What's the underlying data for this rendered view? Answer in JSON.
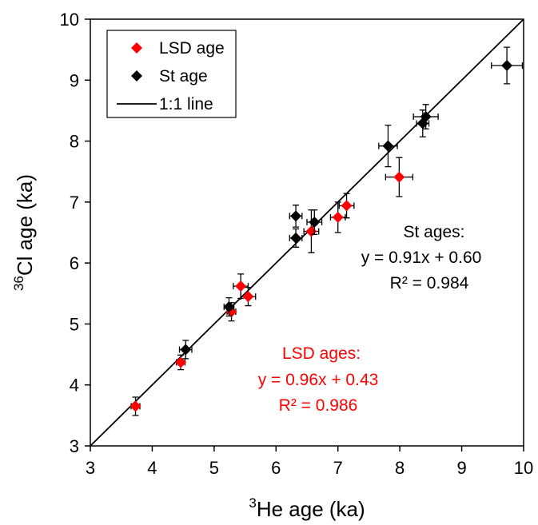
{
  "chart_data": {
    "type": "scatter",
    "title": "",
    "xlabel": {
      "sup": "3",
      "text": "He age (ka)"
    },
    "ylabel": {
      "sup": "36",
      "text": "Cl age (ka)"
    },
    "xlim": [
      3,
      10
    ],
    "ylim": [
      3,
      10
    ],
    "xticks": [
      "3",
      "4",
      "5",
      "6",
      "7",
      "8",
      "9",
      "10"
    ],
    "yticks": [
      "3",
      "4",
      "5",
      "6",
      "7",
      "8",
      "9",
      "10"
    ],
    "grid": false,
    "legend": {
      "placement": "top-left",
      "items": [
        {
          "label": "LSD age",
          "symbol": "diamond",
          "color": "#ff0000"
        },
        {
          "label": "St age",
          "symbol": "diamond",
          "color": "#000000"
        },
        {
          "label": "1:1 line",
          "symbol": "line",
          "color": "#000000"
        }
      ]
    },
    "reference_line": {
      "name": "1:1 line",
      "from": [
        3,
        3
      ],
      "to": [
        10,
        10
      ],
      "color": "#000000"
    },
    "series": [
      {
        "name": "LSD age",
        "color": "#ff0000",
        "points": [
          {
            "x": 3.73,
            "y": 3.65,
            "xerr": 0.07,
            "yerr": 0.15
          },
          {
            "x": 4.46,
            "y": 4.37,
            "xerr": 0.07,
            "yerr": 0.12
          },
          {
            "x": 5.28,
            "y": 5.2,
            "xerr": 0.07,
            "yerr": 0.15
          },
          {
            "x": 5.43,
            "y": 5.62,
            "xerr": 0.12,
            "yerr": 0.2
          },
          {
            "x": 5.55,
            "y": 5.45,
            "xerr": 0.12,
            "yerr": 0.15
          },
          {
            "x": 6.57,
            "y": 6.52,
            "xerr": 0.12,
            "yerr": 0.35
          },
          {
            "x": 7.0,
            "y": 6.75,
            "xerr": 0.12,
            "yerr": 0.25
          },
          {
            "x": 7.14,
            "y": 6.94,
            "xerr": 0.12,
            "yerr": 0.2
          },
          {
            "x": 7.99,
            "y": 7.41,
            "xerr": 0.22,
            "yerr": 0.32
          }
        ]
      },
      {
        "name": "St age",
        "color": "#000000",
        "points": [
          {
            "x": 4.54,
            "y": 4.58,
            "xerr": 0.1,
            "yerr": 0.15
          },
          {
            "x": 5.24,
            "y": 5.28,
            "xerr": 0.08,
            "yerr": 0.15
          },
          {
            "x": 6.32,
            "y": 6.77,
            "xerr": 0.1,
            "yerr": 0.18
          },
          {
            "x": 6.32,
            "y": 6.41,
            "xerr": 0.1,
            "yerr": 0.15
          },
          {
            "x": 6.62,
            "y": 6.67,
            "xerr": 0.12,
            "yerr": 0.2
          },
          {
            "x": 7.81,
            "y": 7.92,
            "xerr": 0.15,
            "yerr": 0.34
          },
          {
            "x": 8.37,
            "y": 8.29,
            "xerr": 0.1,
            "yerr": 0.22
          },
          {
            "x": 8.42,
            "y": 8.4,
            "xerr": 0.2,
            "yerr": 0.2
          },
          {
            "x": 9.73,
            "y": 9.24,
            "xerr": 0.25,
            "yerr": 0.3
          }
        ]
      }
    ],
    "annotations": [
      {
        "id": "st-stats",
        "color": "#000000",
        "lines": [
          "St ages:",
          "y = 0.91x + 0.60",
          "R² = 0.984"
        ]
      },
      {
        "id": "lsd-stats",
        "color": "#ff0000",
        "lines": [
          "LSD ages:",
          "y = 0.96x + 0.43",
          "R² = 0.986"
        ]
      }
    ]
  }
}
